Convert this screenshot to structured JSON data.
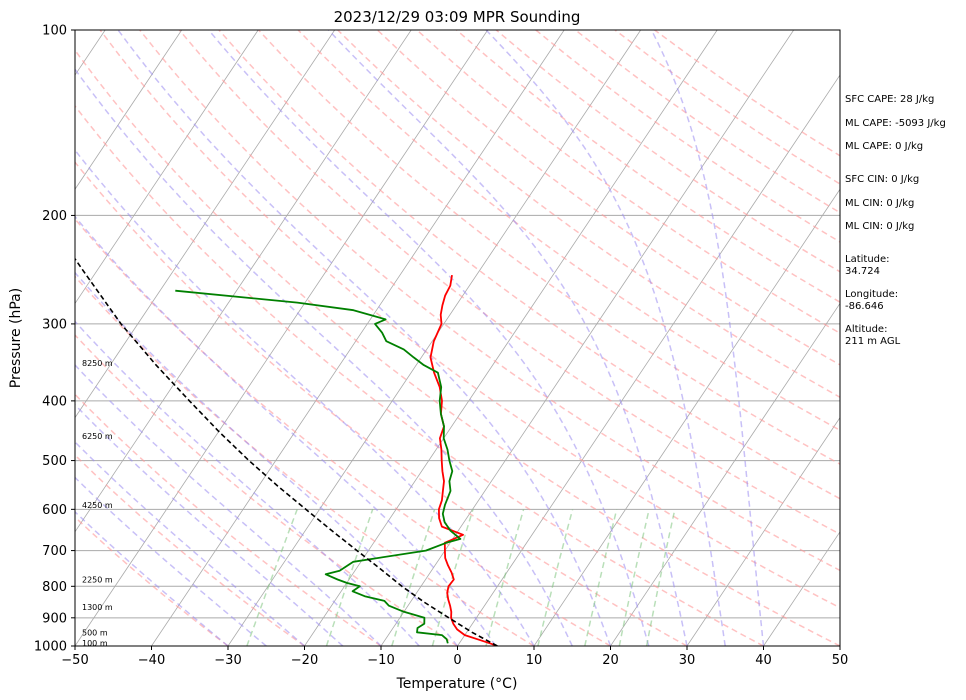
{
  "chart_data": {
    "type": "line",
    "title": "2023/12/29 03:09 MPR Sounding",
    "xlabel": "Temperature (°C)",
    "ylabel": "Pressure (hPa)",
    "xlim": [
      -50,
      50
    ],
    "ylim": [
      1000,
      100
    ],
    "yscale": "log",
    "grid": true,
    "x_ticks": [
      "−50",
      "−40",
      "−30",
      "−20",
      "−10",
      "0",
      "10",
      "20",
      "30",
      "40",
      "50"
    ],
    "x_tick_values": [
      -50,
      -40,
      -30,
      -20,
      -10,
      0,
      10,
      20,
      30,
      40,
      50
    ],
    "y_ticks": [
      "100",
      "200",
      "300",
      "400",
      "500",
      "600",
      "700",
      "800",
      "900",
      "1000"
    ],
    "y_tick_values": [
      100,
      200,
      300,
      400,
      500,
      600,
      700,
      800,
      900,
      1000
    ],
    "colors": {
      "temperature": "#ff0000",
      "dewpoint": "#008000",
      "parcel": "#000000",
      "dry_adiabat": "#ff9999",
      "moist_adiabat": "#9b8cf0",
      "mixing_ratio": "#7fc47f",
      "isotherm": "#aaaaaa"
    },
    "series": [
      {
        "key": "temperature",
        "points": [
          [
            1000,
            5.2
          ],
          [
            990,
            4.0
          ],
          [
            975,
            2.0
          ],
          [
            960,
            0.0
          ],
          [
            940,
            -1.5
          ],
          [
            920,
            -2.5
          ],
          [
            900,
            -3.3
          ],
          [
            880,
            -3.8
          ],
          [
            860,
            -4.5
          ],
          [
            840,
            -5.3
          ],
          [
            820,
            -6.0
          ],
          [
            800,
            -6.4
          ],
          [
            780,
            -6.3
          ],
          [
            760,
            -7.2
          ],
          [
            740,
            -8.3
          ],
          [
            720,
            -9.3
          ],
          [
            700,
            -10.0
          ],
          [
            680,
            -10.7
          ],
          [
            660,
            -9.0
          ],
          [
            640,
            -12.5
          ],
          [
            620,
            -13.6
          ],
          [
            600,
            -14.4
          ],
          [
            580,
            -14.8
          ],
          [
            560,
            -15.5
          ],
          [
            540,
            -16.2
          ],
          [
            520,
            -17.3
          ],
          [
            500,
            -18.3
          ],
          [
            480,
            -19.3
          ],
          [
            460,
            -20.5
          ],
          [
            440,
            -21.0
          ],
          [
            420,
            -22.5
          ],
          [
            400,
            -23.5
          ],
          [
            380,
            -25.0
          ],
          [
            360,
            -27.0
          ],
          [
            340,
            -28.8
          ],
          [
            320,
            -29.8
          ],
          [
            300,
            -30.3
          ],
          [
            290,
            -31.2
          ],
          [
            280,
            -31.8
          ],
          [
            270,
            -32.3
          ],
          [
            260,
            -32.5
          ],
          [
            250,
            -33.2
          ]
        ]
      },
      {
        "key": "dewpoint",
        "points": [
          [
            990,
            -1.5
          ],
          [
            975,
            -2.0
          ],
          [
            960,
            -3.0
          ],
          [
            950,
            -6.5
          ],
          [
            935,
            -6.8
          ],
          [
            920,
            -6.3
          ],
          [
            900,
            -6.8
          ],
          [
            880,
            -10.0
          ],
          [
            860,
            -12.5
          ],
          [
            845,
            -13.5
          ],
          [
            830,
            -16.5
          ],
          [
            815,
            -18.5
          ],
          [
            800,
            -18.0
          ],
          [
            790,
            -20.0
          ],
          [
            780,
            -21.5
          ],
          [
            765,
            -23.5
          ],
          [
            755,
            -22.0
          ],
          [
            730,
            -21.0
          ],
          [
            700,
            -12.5
          ],
          [
            680,
            -10.5
          ],
          [
            670,
            -9.0
          ],
          [
            650,
            -11.0
          ],
          [
            630,
            -12.5
          ],
          [
            610,
            -13.5
          ],
          [
            590,
            -14.0
          ],
          [
            560,
            -14.5
          ],
          [
            540,
            -15.5
          ],
          [
            520,
            -16.0
          ],
          [
            500,
            -17.3
          ],
          [
            480,
            -18.5
          ],
          [
            460,
            -20.0
          ],
          [
            440,
            -21.0
          ],
          [
            420,
            -22.5
          ],
          [
            400,
            -23.8
          ],
          [
            380,
            -24.8
          ],
          [
            360,
            -26.5
          ],
          [
            350,
            -29.0
          ],
          [
            340,
            -31.0
          ],
          [
            330,
            -33.0
          ],
          [
            320,
            -36.0
          ],
          [
            310,
            -37.3
          ],
          [
            300,
            -39.0
          ],
          [
            295,
            -38.0
          ],
          [
            285,
            -43.0
          ],
          [
            277,
            -51.0
          ],
          [
            265,
            -68.0
          ]
        ]
      },
      {
        "key": "parcel",
        "points": [
          [
            1000,
            5.2
          ],
          [
            950,
            0.7
          ],
          [
            900,
            -3.6
          ],
          [
            850,
            -8.1
          ],
          [
            800,
            -12.5
          ],
          [
            750,
            -16.8
          ],
          [
            700,
            -21.5
          ],
          [
            650,
            -26.5
          ],
          [
            600,
            -31.8
          ],
          [
            550,
            -37.5
          ],
          [
            500,
            -43.5
          ],
          [
            450,
            -49.8
          ],
          [
            400,
            -56.5
          ],
          [
            350,
            -64.0
          ],
          [
            300,
            -72.2
          ],
          [
            250,
            -81.0
          ],
          [
            230,
            -85.0
          ]
        ]
      }
    ],
    "height_labels": [
      {
        "text": "8250 m",
        "p": 347
      },
      {
        "text": "6250 m",
        "p": 456
      },
      {
        "text": "4250 m",
        "p": 590
      },
      {
        "text": "2250 m",
        "p": 780
      },
      {
        "text": "1300 m",
        "p": 864
      },
      {
        "text": "500 m",
        "p": 950
      },
      {
        "text": "100 m",
        "p": 988
      }
    ],
    "annotations": [
      "SFC CAPE: 28 J/kg",
      "ML CAPE: -5093 J/kg",
      "ML CAPE: 0 J/kg",
      "SFC CIN: 0 J/kg",
      "ML CIN: 0 J/kg",
      "ML CIN: 0 J/kg",
      "Latitude:",
      "34.724",
      "Longitude:",
      "-86.646",
      "Altitude:",
      "211 m AGL"
    ]
  }
}
